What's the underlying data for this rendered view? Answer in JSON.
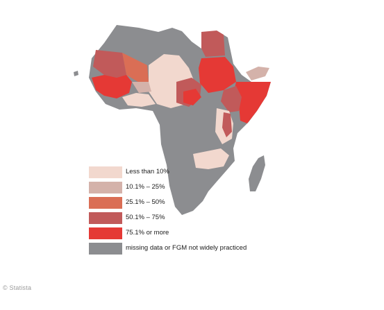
{
  "colors": {
    "missing": "#8c8d90",
    "less_10": "#f2d8ce",
    "p10_25": "#d4b2aa",
    "p25_50": "#da6e55",
    "p50_75": "#c15a5a",
    "p75_plus": "#e53935"
  },
  "legend": {
    "items": [
      {
        "label": "Less than 10%",
        "color_key": "less_10"
      },
      {
        "label": "10.1% – 25%",
        "color_key": "p10_25"
      },
      {
        "label": "25.1% – 50%",
        "color_key": "p25_50"
      },
      {
        "label": "50.1% – 75%",
        "color_key": "p50_75"
      },
      {
        "label": "75.1% or more",
        "color_key": "p75_plus"
      },
      {
        "label": "missing data or FGM not widely practiced",
        "color_key": "missing"
      }
    ]
  },
  "credit": "© Statista"
}
